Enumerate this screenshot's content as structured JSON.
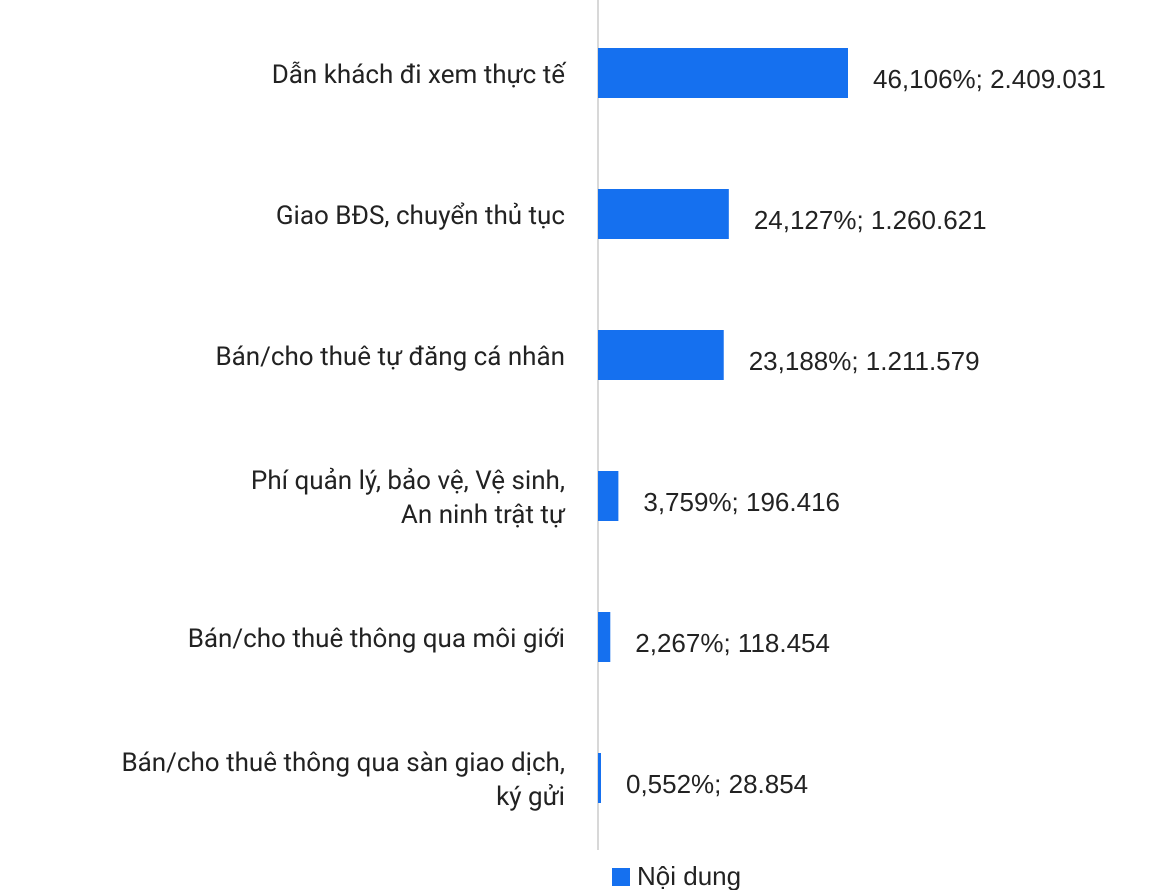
{
  "chart_data": {
    "type": "bar",
    "orientation": "horizontal",
    "categories": [
      "Dẫn khách đi xem thực tế",
      "Giao BĐS, chuyển thủ tục",
      "Bán/cho thuê tự đăng cá nhân",
      "Phí quản lý, bảo vệ, Vệ sinh,\nAn ninh trật tự",
      "Bán/cho thuê thông qua môi giới",
      "Bán/cho thuê thông qua sàn giao dịch,\nký gửi"
    ],
    "series": [
      {
        "name": "Nội dung",
        "color": "#1570ef",
        "values": [
          46.106,
          24.127,
          23.188,
          3.759,
          2.267,
          0.552
        ],
        "value_labels": [
          "46,106%; 2.409.031",
          "24,127%; 1.260.621",
          "23,188%; 1.211.579",
          "3,759%; 196.416",
          "2,267%; 118.454",
          "0,552%; 28.854"
        ]
      }
    ],
    "legend": "bottom"
  }
}
